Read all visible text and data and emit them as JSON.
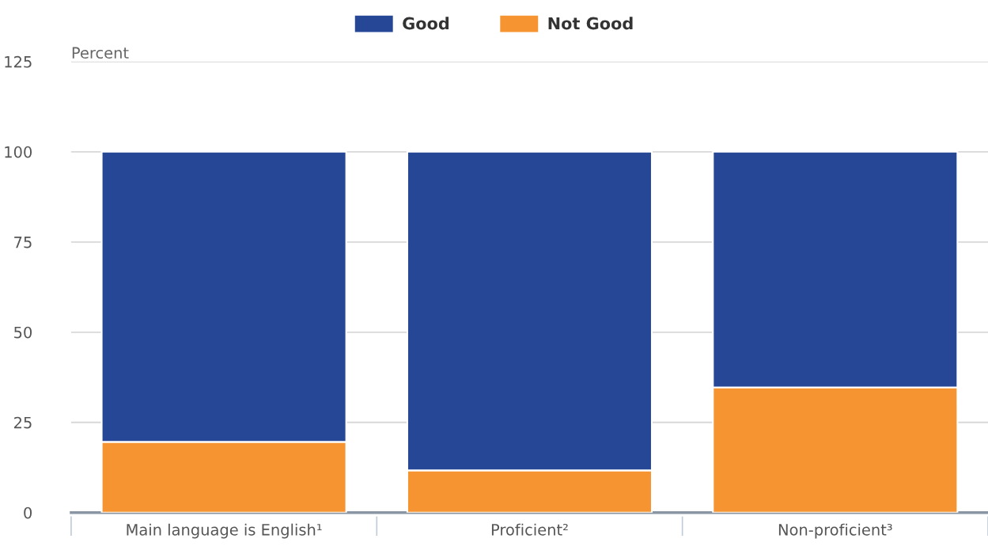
{
  "chart_data": {
    "type": "bar",
    "stacked": true,
    "ylabel": "Percent",
    "categories": [
      "Main language is English¹",
      "Proficient²",
      "Non-proficient³"
    ],
    "series": [
      {
        "name": "Not Good",
        "color": "#f59431",
        "values": [
          19.6,
          11.7,
          34.7
        ]
      },
      {
        "name": "Good",
        "color": "#264796",
        "values": [
          80.4,
          88.3,
          65.3
        ]
      }
    ],
    "ylim": [
      0,
      125
    ],
    "yticks": [
      0,
      25,
      50,
      75,
      100,
      125
    ],
    "grid": "y",
    "legend": "top"
  }
}
